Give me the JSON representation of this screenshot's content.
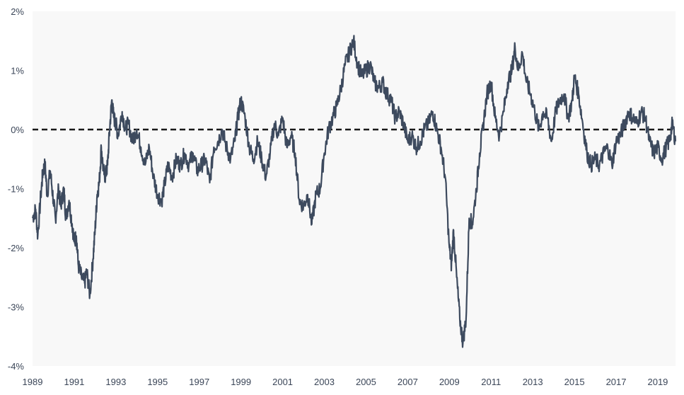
{
  "chart_data": {
    "type": "line",
    "title": "",
    "xlabel": "",
    "ylabel": "",
    "x_range": [
      1989.0,
      2019.85
    ],
    "ylim": [
      -4,
      2
    ],
    "y_unit": "%",
    "y_ticks": [
      2,
      1,
      0,
      -1,
      -2,
      -3,
      -4
    ],
    "y_tick_labels": [
      "2%",
      "1%",
      "0%",
      "-1%",
      "-2%",
      "-3%",
      "-4%"
    ],
    "x_ticks": [
      1989,
      1991,
      1993,
      1995,
      1997,
      1999,
      2001,
      2003,
      2005,
      2007,
      2009,
      2011,
      2013,
      2015,
      2017,
      2019
    ],
    "x_tick_labels": [
      "1989",
      "1991",
      "1993",
      "1995",
      "1997",
      "1999",
      "2001",
      "2003",
      "2005",
      "2007",
      "2009",
      "2011",
      "2013",
      "2015",
      "2017",
      "2019"
    ],
    "reference_line": {
      "y": 0,
      "style": "dashed",
      "color": "#1a1a1a"
    },
    "grid": false,
    "legend": "none",
    "colors": {
      "line": "#3d4a5e",
      "plot_background": "#f8f8f8",
      "tick_text": "#3b4658"
    },
    "series": [
      {
        "points": [
          [
            1989.0,
            -1.5
          ],
          [
            1989.15,
            -1.35
          ],
          [
            1989.25,
            -1.8
          ],
          [
            1989.4,
            -1.1
          ],
          [
            1989.5,
            -0.7
          ],
          [
            1989.6,
            -0.6
          ],
          [
            1989.7,
            -1.1
          ],
          [
            1989.85,
            -0.7
          ],
          [
            1990.0,
            -1.2
          ],
          [
            1990.1,
            -1.5
          ],
          [
            1990.25,
            -1.0
          ],
          [
            1990.35,
            -1.3
          ],
          [
            1990.5,
            -1.0
          ],
          [
            1990.6,
            -1.5
          ],
          [
            1990.75,
            -1.2
          ],
          [
            1990.9,
            -1.6
          ],
          [
            1991.0,
            -1.9
          ],
          [
            1991.1,
            -1.8
          ],
          [
            1991.2,
            -2.3
          ],
          [
            1991.35,
            -2.5
          ],
          [
            1991.5,
            -2.6
          ],
          [
            1991.6,
            -2.4
          ],
          [
            1991.75,
            -2.8
          ],
          [
            1991.9,
            -2.2
          ],
          [
            1992.0,
            -1.7
          ],
          [
            1992.1,
            -1.1
          ],
          [
            1992.2,
            -0.9
          ],
          [
            1992.3,
            -0.3
          ],
          [
            1992.4,
            -0.7
          ],
          [
            1992.5,
            -0.8
          ],
          [
            1992.6,
            -0.6
          ],
          [
            1992.7,
            0.0
          ],
          [
            1992.8,
            0.5
          ],
          [
            1992.9,
            0.2
          ],
          [
            1993.0,
            0.1
          ],
          [
            1993.1,
            -0.1
          ],
          [
            1993.3,
            0.3
          ],
          [
            1993.45,
            0.0
          ],
          [
            1993.6,
            0.1
          ],
          [
            1993.8,
            -0.2
          ],
          [
            1994.0,
            0.0
          ],
          [
            1994.2,
            -0.3
          ],
          [
            1994.4,
            -0.6
          ],
          [
            1994.6,
            -0.3
          ],
          [
            1994.8,
            -0.8
          ],
          [
            1995.0,
            -1.1
          ],
          [
            1995.2,
            -1.2
          ],
          [
            1995.35,
            -0.9
          ],
          [
            1995.5,
            -0.6
          ],
          [
            1995.7,
            -0.8
          ],
          [
            1995.9,
            -0.5
          ],
          [
            1996.1,
            -0.6
          ],
          [
            1996.3,
            -0.4
          ],
          [
            1996.5,
            -0.6
          ],
          [
            1996.7,
            -0.4
          ],
          [
            1996.9,
            -0.7
          ],
          [
            1997.1,
            -0.6
          ],
          [
            1997.3,
            -0.5
          ],
          [
            1997.5,
            -0.9
          ],
          [
            1997.7,
            -0.3
          ],
          [
            1997.9,
            -0.2
          ],
          [
            1998.1,
            0.0
          ],
          [
            1998.3,
            -0.3
          ],
          [
            1998.5,
            -0.5
          ],
          [
            1998.7,
            -0.2
          ],
          [
            1998.85,
            0.2
          ],
          [
            1999.0,
            0.5
          ],
          [
            1999.2,
            0.2
          ],
          [
            1999.4,
            -0.3
          ],
          [
            1999.6,
            -0.5
          ],
          [
            1999.8,
            -0.2
          ],
          [
            2000.0,
            -0.5
          ],
          [
            2000.2,
            -0.8
          ],
          [
            2000.4,
            -0.4
          ],
          [
            2000.6,
            0.1
          ],
          [
            2000.8,
            -0.1
          ],
          [
            2001.0,
            0.2
          ],
          [
            2001.2,
            -0.3
          ],
          [
            2001.4,
            -0.1
          ],
          [
            2001.6,
            -0.4
          ],
          [
            2001.8,
            -1.2
          ],
          [
            2002.0,
            -1.3
          ],
          [
            2002.2,
            -1.1
          ],
          [
            2002.4,
            -1.6
          ],
          [
            2002.6,
            -1.1
          ],
          [
            2002.8,
            -1.0
          ],
          [
            2003.0,
            -0.4
          ],
          [
            2003.2,
            0.0
          ],
          [
            2003.4,
            0.2
          ],
          [
            2003.6,
            0.4
          ],
          [
            2003.8,
            0.7
          ],
          [
            2004.0,
            1.1
          ],
          [
            2004.2,
            1.3
          ],
          [
            2004.4,
            1.5
          ],
          [
            2004.6,
            1.1
          ],
          [
            2004.8,
            0.9
          ],
          [
            2005.0,
            1.0
          ],
          [
            2005.2,
            1.1
          ],
          [
            2005.4,
            0.8
          ],
          [
            2005.6,
            0.7
          ],
          [
            2005.8,
            0.8
          ],
          [
            2006.0,
            0.6
          ],
          [
            2006.2,
            0.5
          ],
          [
            2006.4,
            0.2
          ],
          [
            2006.6,
            0.3
          ],
          [
            2006.8,
            0.1
          ],
          [
            2007.0,
            -0.2
          ],
          [
            2007.2,
            -0.1
          ],
          [
            2007.4,
            -0.3
          ],
          [
            2007.6,
            -0.2
          ],
          [
            2007.8,
            0.0
          ],
          [
            2008.0,
            0.1
          ],
          [
            2008.2,
            0.3
          ],
          [
            2008.4,
            0.0
          ],
          [
            2008.6,
            -0.3
          ],
          [
            2008.8,
            -0.8
          ],
          [
            2009.0,
            -2.0
          ],
          [
            2009.1,
            -2.3
          ],
          [
            2009.2,
            -1.7
          ],
          [
            2009.35,
            -2.5
          ],
          [
            2009.5,
            -3.2
          ],
          [
            2009.65,
            -3.6
          ],
          [
            2009.8,
            -3.2
          ],
          [
            2009.95,
            -1.5
          ],
          [
            2010.1,
            -1.6
          ],
          [
            2010.3,
            -1.0
          ],
          [
            2010.45,
            -0.4
          ],
          [
            2010.6,
            0.0
          ],
          [
            2010.8,
            0.6
          ],
          [
            2011.0,
            0.8
          ],
          [
            2011.2,
            0.2
          ],
          [
            2011.4,
            -0.1
          ],
          [
            2011.6,
            0.3
          ],
          [
            2011.8,
            0.8
          ],
          [
            2012.0,
            1.0
          ],
          [
            2012.15,
            1.4
          ],
          [
            2012.3,
            1.0
          ],
          [
            2012.5,
            1.3
          ],
          [
            2012.7,
            0.8
          ],
          [
            2012.9,
            0.6
          ],
          [
            2013.1,
            0.3
          ],
          [
            2013.3,
            0.0
          ],
          [
            2013.5,
            0.3
          ],
          [
            2013.7,
            0.2
          ],
          [
            2013.9,
            -0.2
          ],
          [
            2014.1,
            0.3
          ],
          [
            2014.3,
            0.5
          ],
          [
            2014.5,
            0.6
          ],
          [
            2014.7,
            0.2
          ],
          [
            2014.9,
            0.5
          ],
          [
            2015.0,
            0.9
          ],
          [
            2015.2,
            0.6
          ],
          [
            2015.4,
            0.1
          ],
          [
            2015.6,
            -0.4
          ],
          [
            2015.8,
            -0.6
          ],
          [
            2016.0,
            -0.5
          ],
          [
            2016.2,
            -0.6
          ],
          [
            2016.4,
            -0.4
          ],
          [
            2016.6,
            -0.3
          ],
          [
            2016.8,
            -0.6
          ],
          [
            2017.0,
            -0.2
          ],
          [
            2017.2,
            -0.1
          ],
          [
            2017.4,
            0.1
          ],
          [
            2017.6,
            0.3
          ],
          [
            2017.8,
            0.2
          ],
          [
            2018.0,
            0.1
          ],
          [
            2018.2,
            0.3
          ],
          [
            2018.4,
            0.2
          ],
          [
            2018.6,
            -0.2
          ],
          [
            2018.8,
            -0.4
          ],
          [
            2019.0,
            -0.3
          ],
          [
            2019.2,
            -0.5
          ],
          [
            2019.4,
            -0.3
          ],
          [
            2019.55,
            -0.2
          ],
          [
            2019.7,
            0.1
          ],
          [
            2019.85,
            -0.2
          ]
        ]
      }
    ]
  }
}
